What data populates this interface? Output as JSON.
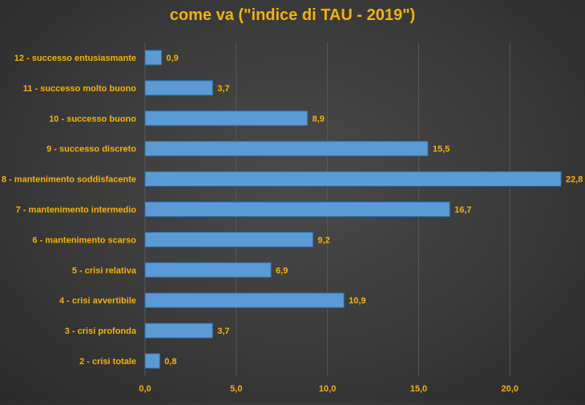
{
  "colors": {
    "text": "#f4b400",
    "bar": "#5b9bd5",
    "bar_edge": "#2e75b6",
    "grid": "#595959"
  },
  "chart_data": {
    "type": "bar",
    "orientation": "horizontal",
    "title": "come va (\"indice di TAU - 2019\")",
    "categories": [
      "12 - successo entusiasmante",
      "11 - successo molto buono",
      "10 - successo  buono",
      "9 - successo discreto",
      "8 - mantenimento soddisfacente",
      "7 - mantenimento intermedio",
      "6 - mantenimento scarso",
      "5 - crisi relativa",
      "4 - crisi avvertibile",
      "3 - crisi profonda",
      "2 - crisi totale"
    ],
    "values": [
      0.9,
      3.7,
      8.9,
      15.5,
      22.8,
      16.7,
      9.2,
      6.9,
      10.9,
      3.7,
      0.8
    ],
    "value_labels": [
      "0,9",
      "3,7",
      "8,9",
      "15,5",
      "22,8",
      "16,7",
      "9,2",
      "6,9",
      "10,9",
      "3,7",
      "0,8"
    ],
    "xlim": [
      0,
      22.8
    ],
    "xticks": [
      0,
      5,
      10,
      15,
      20
    ],
    "xtick_labels": [
      "0,0",
      "5,0",
      "10,0",
      "15,0",
      "20,0"
    ],
    "grid": true,
    "legend": false
  }
}
